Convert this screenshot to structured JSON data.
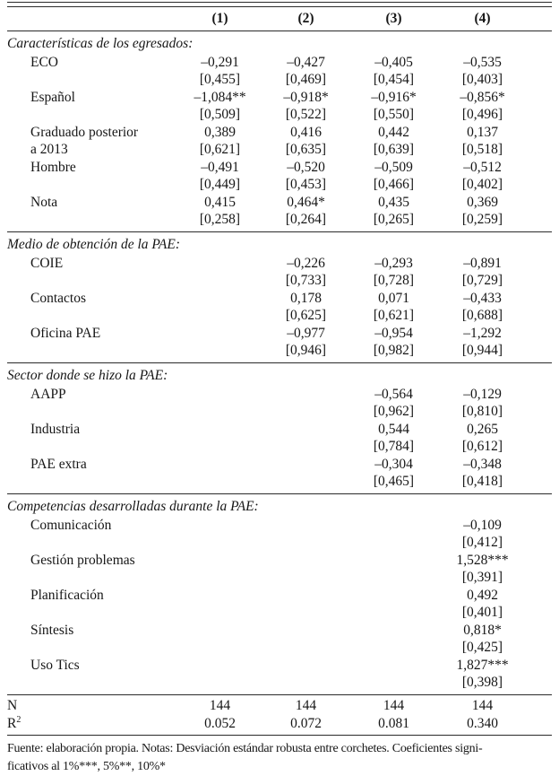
{
  "table": {
    "columns": [
      "(1)",
      "(2)",
      "(3)",
      "(4)"
    ],
    "sections": [
      {
        "title": "Características de los egresados:",
        "rows": [
          {
            "label": "ECO",
            "label2": "",
            "coefs": [
              "–0,291",
              "–0,427",
              "–0,405",
              "–0,535"
            ],
            "ses": [
              "[0,455]",
              "[0,469]",
              "[0,454]",
              "[0,403]"
            ]
          },
          {
            "label": "Español",
            "label2": "",
            "coefs": [
              "–1,084**",
              "–0,918*",
              "–0,916*",
              "–0,856*"
            ],
            "ses": [
              "[0,509]",
              "[0,522]",
              "[0,550]",
              "[0,496]"
            ]
          },
          {
            "label": "Graduado posterior",
            "label2": "a 2013",
            "coefs": [
              "0,389",
              "0,416",
              "0,442",
              "0,137"
            ],
            "ses": [
              "[0,621]",
              "[0,635]",
              "[0,639]",
              "[0,518]"
            ]
          },
          {
            "label": "Hombre",
            "label2": "",
            "coefs": [
              "–0,491",
              "–0,520",
              "–0,509",
              "–0,512"
            ],
            "ses": [
              "[0,449]",
              "[0,453]",
              "[0,466]",
              "[0,402]"
            ]
          },
          {
            "label": "Nota",
            "label2": "",
            "coefs": [
              "0,415",
              "0,464*",
              "0,435",
              "0,369"
            ],
            "ses": [
              "[0,258]",
              "[0,264]",
              "[0,265]",
              "[0,259]"
            ]
          }
        ]
      },
      {
        "title": "Medio de obtención de la PAE:",
        "rows": [
          {
            "label": "COIE",
            "label2": "",
            "coefs": [
              "",
              "–0,226",
              "–0,293",
              "–0,891"
            ],
            "ses": [
              "",
              "[0,733]",
              "[0,728]",
              "[0,729]"
            ]
          },
          {
            "label": "Contactos",
            "label2": "",
            "coefs": [
              "",
              "0,178",
              "0,071",
              "–0,433"
            ],
            "ses": [
              "",
              "[0,625]",
              "[0,621]",
              "[0,688]"
            ]
          },
          {
            "label": "Oficina PAE",
            "label2": "",
            "coefs": [
              "",
              "–0,977",
              "–0,954",
              "–1,292"
            ],
            "ses": [
              "",
              "[0,946]",
              "[0,982]",
              "[0,944]"
            ]
          }
        ]
      },
      {
        "title": "Sector donde se hizo la PAE:",
        "rows": [
          {
            "label": "AAPP",
            "label2": "",
            "coefs": [
              "",
              "",
              "–0,564",
              "–0,129"
            ],
            "ses": [
              "",
              "",
              "[0,962]",
              "[0,810]"
            ]
          },
          {
            "label": "Industria",
            "label2": "",
            "coefs": [
              "",
              "",
              "0,544",
              "0,265"
            ],
            "ses": [
              "",
              "",
              "[0,784]",
              "[0,612]"
            ]
          },
          {
            "label": "PAE extra",
            "label2": "",
            "coefs": [
              "",
              "",
              "–0,304",
              "–0,348"
            ],
            "ses": [
              "",
              "",
              "[0,465]",
              "[0,418]"
            ]
          }
        ]
      },
      {
        "title": "Competencias desarrolladas durante la PAE:",
        "rows": [
          {
            "label": "Comunicación",
            "label2": "",
            "coefs": [
              "",
              "",
              "",
              "–0,109"
            ],
            "ses": [
              "",
              "",
              "",
              "[0,412]"
            ]
          },
          {
            "label": "Gestión problemas",
            "label2": "",
            "coefs": [
              "",
              "",
              "",
              "1,528***"
            ],
            "ses": [
              "",
              "",
              "",
              "[0,391]"
            ]
          },
          {
            "label": "Planificación",
            "label2": "",
            "coefs": [
              "",
              "",
              "",
              "0,492"
            ],
            "ses": [
              "",
              "",
              "",
              "[0,401]"
            ]
          },
          {
            "label": "Síntesis",
            "label2": "",
            "coefs": [
              "",
              "",
              "",
              "0,818*"
            ],
            "ses": [
              "",
              "",
              "",
              "[0,425]"
            ]
          },
          {
            "label": "Uso Tics",
            "label2": "",
            "coefs": [
              "",
              "",
              "",
              "1,827***"
            ],
            "ses": [
              "",
              "",
              "",
              "[0,398]"
            ]
          }
        ]
      }
    ],
    "stats": [
      {
        "label": "N",
        "sup": "",
        "values": [
          "144",
          "144",
          "144",
          "144"
        ]
      },
      {
        "label": "R",
        "sup": "2",
        "values": [
          "0.052",
          "0.072",
          "0.081",
          "0.340"
        ]
      }
    ],
    "footnote": [
      "Fuente:  elaboración propia. Notas: Desviación estándar robusta entre corchetes. Coeficientes signi-",
      "ficativos al 1%***, 5%**, 10%*"
    ]
  }
}
